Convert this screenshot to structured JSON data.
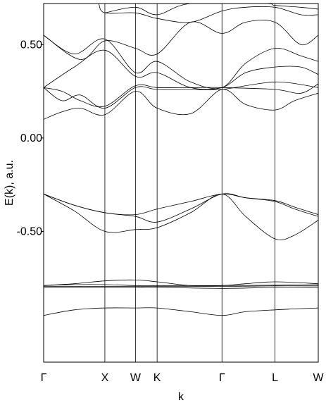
{
  "chart_data": {
    "type": "line",
    "title": "",
    "xlabel": "k",
    "ylabel": "E(k), a.u.",
    "k_points": [
      {
        "label": "Γ",
        "x": 0
      },
      {
        "label": "X",
        "x": 1
      },
      {
        "label": "W",
        "x": 1.5
      },
      {
        "label": "K",
        "x": 1.854
      },
      {
        "label": "Γ",
        "x": 2.914
      },
      {
        "label": "L",
        "x": 3.78
      },
      {
        "label": "W",
        "x": 4.487
      }
    ],
    "xlim": [
      0,
      4.487
    ],
    "ylim": [
      -1.2,
      0.72
    ],
    "yticks": [
      {
        "value": 0.5,
        "label": "0.50"
      },
      {
        "value": 0.0,
        "label": "0.00"
      },
      {
        "value": -0.5,
        "label": "-0.50"
      }
    ],
    "grid": false,
    "series": [
      {
        "values": [
          [
            0,
            -0.95
          ],
          [
            0.5,
            -0.92
          ],
          [
            1,
            -0.91
          ],
          [
            1.5,
            -0.91
          ],
          [
            1.854,
            -0.91
          ],
          [
            2.4,
            -0.93
          ],
          [
            2.914,
            -0.95
          ],
          [
            3.3,
            -0.93
          ],
          [
            3.78,
            -0.92
          ],
          [
            4.1,
            -0.915
          ],
          [
            4.487,
            -0.91
          ]
        ]
      },
      {
        "values": [
          [
            0,
            -0.8
          ],
          [
            1,
            -0.8
          ],
          [
            1.5,
            -0.8
          ],
          [
            1.854,
            -0.8
          ],
          [
            2.914,
            -0.805
          ],
          [
            3.78,
            -0.8
          ],
          [
            4.487,
            -0.8
          ]
        ]
      },
      {
        "values": [
          [
            0,
            -0.795
          ],
          [
            1,
            -0.795
          ],
          [
            1.5,
            -0.795
          ],
          [
            1.854,
            -0.795
          ],
          [
            2.914,
            -0.795
          ],
          [
            3.78,
            -0.792
          ],
          [
            4.487,
            -0.792
          ]
        ]
      },
      {
        "values": [
          [
            0,
            -0.79
          ],
          [
            0.5,
            -0.785
          ],
          [
            1,
            -0.785
          ],
          [
            1.5,
            -0.79
          ],
          [
            1.854,
            -0.79
          ],
          [
            2.914,
            -0.79
          ],
          [
            3.78,
            -0.788
          ],
          [
            4.487,
            -0.785
          ]
        ]
      },
      {
        "values": [
          [
            0,
            -0.79
          ],
          [
            0.5,
            -0.78
          ],
          [
            1,
            -0.765
          ],
          [
            1.5,
            -0.76
          ],
          [
            1.854,
            -0.77
          ],
          [
            2.4,
            -0.79
          ],
          [
            2.914,
            -0.79
          ],
          [
            3.3,
            -0.78
          ],
          [
            3.78,
            -0.77
          ],
          [
            4.487,
            -0.78
          ]
        ]
      },
      {
        "values": [
          [
            0,
            -0.3
          ],
          [
            0.5,
            -0.39
          ],
          [
            1,
            -0.5
          ],
          [
            1.5,
            -0.49
          ],
          [
            1.854,
            -0.48
          ],
          [
            2.4,
            -0.4
          ],
          [
            2.914,
            -0.3
          ],
          [
            3.3,
            -0.42
          ],
          [
            3.78,
            -0.54
          ],
          [
            4.1,
            -0.52
          ],
          [
            4.487,
            -0.44
          ]
        ]
      },
      {
        "values": [
          [
            0,
            -0.3
          ],
          [
            0.5,
            -0.36
          ],
          [
            1,
            -0.4
          ],
          [
            1.5,
            -0.42
          ],
          [
            1.854,
            -0.45
          ],
          [
            2.4,
            -0.38
          ],
          [
            2.914,
            -0.3
          ],
          [
            3.3,
            -0.32
          ],
          [
            3.78,
            -0.34
          ],
          [
            4.1,
            -0.38
          ],
          [
            4.487,
            -0.42
          ]
        ]
      },
      {
        "values": [
          [
            0,
            -0.3
          ],
          [
            0.5,
            -0.36
          ],
          [
            1,
            -0.4
          ],
          [
            1.5,
            -0.41
          ],
          [
            1.854,
            -0.38
          ],
          [
            2.4,
            -0.34
          ],
          [
            2.914,
            -0.3
          ],
          [
            3.3,
            -0.32
          ],
          [
            3.78,
            -0.335
          ],
          [
            4.1,
            -0.37
          ],
          [
            4.487,
            -0.41
          ]
        ]
      },
      {
        "values": [
          [
            0,
            0.1
          ],
          [
            0.3,
            0.14
          ],
          [
            0.6,
            0.16
          ],
          [
            1,
            0.125
          ],
          [
            1.5,
            0.25
          ],
          [
            1.854,
            0.16
          ],
          [
            2.4,
            0.13
          ],
          [
            2.914,
            0.26
          ],
          [
            3.3,
            0.18
          ],
          [
            3.78,
            0.15
          ],
          [
            4.1,
            0.2
          ],
          [
            4.487,
            0.24
          ]
        ]
      },
      {
        "values": [
          [
            0,
            0.27
          ],
          [
            0.3,
            0.2
          ],
          [
            0.6,
            0.23
          ],
          [
            1,
            0.16
          ],
          [
            1.5,
            0.27
          ],
          [
            1.854,
            0.26
          ],
          [
            2.4,
            0.26
          ],
          [
            2.914,
            0.26
          ],
          [
            3.78,
            0.3
          ],
          [
            4.487,
            0.27
          ]
        ]
      },
      {
        "values": [
          [
            0,
            0.27
          ],
          [
            0.3,
            0.25
          ],
          [
            0.6,
            0.2
          ],
          [
            1,
            0.17
          ],
          [
            1.5,
            0.28
          ],
          [
            1.854,
            0.27
          ],
          [
            2.4,
            0.27
          ],
          [
            2.914,
            0.27
          ],
          [
            3.78,
            0.26
          ],
          [
            4.2,
            0.24
          ],
          [
            4.487,
            0.29
          ]
        ]
      },
      {
        "values": [
          [
            0,
            0.27
          ],
          [
            0.5,
            0.38
          ],
          [
            1,
            0.47
          ],
          [
            1.5,
            0.33
          ],
          [
            1.854,
            0.35
          ],
          [
            2.4,
            0.27
          ],
          [
            2.914,
            0.27
          ],
          [
            3.3,
            0.35
          ],
          [
            3.78,
            0.38
          ],
          [
            4.2,
            0.38
          ],
          [
            4.487,
            0.34
          ]
        ]
      },
      {
        "values": [
          [
            0,
            0.55
          ],
          [
            0.5,
            0.45
          ],
          [
            1,
            0.53
          ],
          [
            1.5,
            0.35
          ],
          [
            1.854,
            0.41
          ],
          [
            2.4,
            0.3
          ],
          [
            2.914,
            0.27
          ],
          [
            3.3,
            0.4
          ],
          [
            3.78,
            0.48
          ],
          [
            4.2,
            0.44
          ],
          [
            4.487,
            0.41
          ]
        ]
      },
      {
        "values": [
          [
            0,
            0.55
          ],
          [
            0.6,
            0.42
          ],
          [
            1,
            0.52
          ],
          [
            1.5,
            0.48
          ],
          [
            1.854,
            0.45
          ],
          [
            2.4,
            0.62
          ],
          [
            2.914,
            0.56
          ],
          [
            3.3,
            0.62
          ],
          [
            3.78,
            0.62
          ],
          [
            4.2,
            0.5
          ],
          [
            4.487,
            0.55
          ]
        ]
      },
      {
        "values": [
          [
            0.9,
            0.72
          ],
          [
            1,
            0.67
          ],
          [
            1.5,
            0.67
          ],
          [
            1.854,
            0.64
          ],
          [
            2.4,
            0.62
          ],
          [
            2.914,
            0.68
          ],
          [
            3.3,
            0.7
          ],
          [
            3.78,
            0.7
          ],
          [
            4.2,
            0.66
          ],
          [
            4.487,
            0.66
          ]
        ]
      },
      {
        "values": [
          [
            1,
            0.67
          ],
          [
            1.5,
            0.7
          ],
          [
            1.854,
            0.66
          ],
          [
            2.4,
            0.72
          ],
          [
            3.6,
            0.72
          ],
          [
            3.78,
            0.71
          ],
          [
            4.2,
            0.7
          ],
          [
            4.487,
            0.69
          ]
        ]
      }
    ]
  }
}
